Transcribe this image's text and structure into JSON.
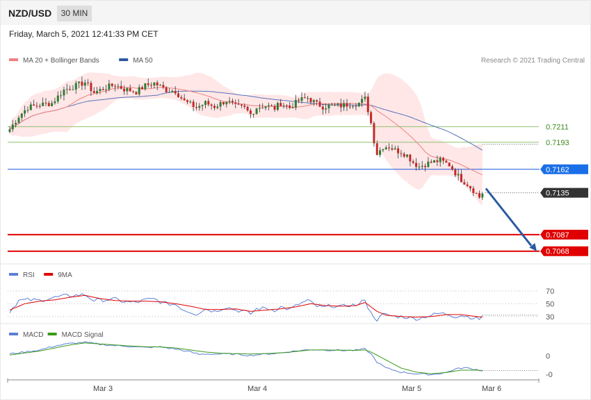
{
  "header": {
    "symbol": "NZD/USD",
    "timeframe": "30 MIN",
    "datetime": "Friday, March 5, 2021 12:41:33 PM CET"
  },
  "legend": {
    "main": [
      {
        "label": "MA 20 + Bollinger Bands",
        "color": "#f08080"
      },
      {
        "label": "MA 50",
        "color": "#2c5aa0"
      }
    ],
    "rsi": [
      {
        "label": "RSI",
        "color": "#5b7fd4"
      },
      {
        "label": "9MA",
        "color": "#e00000"
      }
    ],
    "macd": [
      {
        "label": "MACD",
        "color": "#5b7fd4"
      },
      {
        "label": "MACD Signal",
        "color": "#3a9a1a"
      }
    ]
  },
  "credit": "Research © 2021 Trading Central",
  "colors": {
    "bullish": "#2e7d32",
    "bearish": "#c62828",
    "band_fill": "#ffe3e3",
    "ma20": "#f08080",
    "ma50": "#5572b8",
    "arrow": "#2c5aa0"
  },
  "chart_data": [
    {
      "type": "candlestick",
      "ylim": [
        0.7055,
        0.7283
      ],
      "xlim": [
        0,
        160
      ],
      "price_levels": [
        {
          "label": "0.7211",
          "value": 0.7211,
          "type": "resistance",
          "color": "#8dc06b",
          "tag_color": "#ffffff",
          "text_color": "#3a8a1a"
        },
        {
          "label": "0.7193",
          "value": 0.7193,
          "type": "resistance",
          "color": "#8dc06b",
          "tag_color": "#ffffff",
          "text_color": "#3a8a1a"
        },
        {
          "label": "0.7162",
          "value": 0.7162,
          "type": "pivot",
          "color": "#1a56db",
          "tag_color": "#1a6fe8",
          "text_color": "#ffffff"
        },
        {
          "label": "0.7135",
          "value": 0.7135,
          "type": "last",
          "color": "#333333",
          "tag_color": "#333333",
          "text_color": "#ffffff"
        },
        {
          "label": "0.7087",
          "value": 0.7087,
          "type": "support",
          "color": "#e00000",
          "tag_color": "#e00000",
          "text_color": "#ffffff"
        },
        {
          "label": "0.7068",
          "value": 0.7068,
          "type": "support",
          "color": "#e00000",
          "tag_color": "#e00000",
          "text_color": "#ffffff"
        }
      ],
      "anchors": [
        [
          0,
          0.7208
        ],
        [
          3,
          0.7223
        ],
        [
          6,
          0.7233
        ],
        [
          10,
          0.7236
        ],
        [
          14,
          0.7238
        ],
        [
          18,
          0.7253
        ],
        [
          22,
          0.7258
        ],
        [
          25,
          0.7262
        ],
        [
          28,
          0.725
        ],
        [
          32,
          0.7256
        ],
        [
          35,
          0.7259
        ],
        [
          38,
          0.7254
        ],
        [
          42,
          0.7251
        ],
        [
          45,
          0.7258
        ],
        [
          48,
          0.7261
        ],
        [
          50,
          0.7257
        ],
        [
          52,
          0.7253
        ],
        [
          55,
          0.7252
        ],
        [
          58,
          0.724
        ],
        [
          62,
          0.7233
        ],
        [
          65,
          0.7238
        ],
        [
          68,
          0.7234
        ],
        [
          72,
          0.7241
        ],
        [
          75,
          0.7234
        ],
        [
          78,
          0.7232
        ],
        [
          80,
          0.7225
        ],
        [
          82,
          0.7233
        ],
        [
          85,
          0.7235
        ],
        [
          88,
          0.7232
        ],
        [
          90,
          0.7238
        ],
        [
          93,
          0.7233
        ],
        [
          96,
          0.7241
        ],
        [
          99,
          0.7244
        ],
        [
          102,
          0.7237
        ],
        [
          104,
          0.7234
        ],
        [
          107,
          0.7235
        ],
        [
          110,
          0.7235
        ],
        [
          113,
          0.7237
        ],
        [
          116,
          0.7238
        ],
        [
          118,
          0.7243
        ],
        [
          119,
          0.723
        ],
        [
          120,
          0.7215
        ],
        [
          121,
          0.7195
        ],
        [
          122,
          0.718
        ],
        [
          124,
          0.7188
        ],
        [
          126,
          0.7188
        ],
        [
          128,
          0.7184
        ],
        [
          130,
          0.7182
        ],
        [
          132,
          0.7178
        ],
        [
          134,
          0.717
        ],
        [
          136,
          0.7165
        ],
        [
          138,
          0.7168
        ],
        [
          140,
          0.717
        ],
        [
          143,
          0.7172
        ],
        [
          146,
          0.7167
        ],
        [
          148,
          0.7158
        ],
        [
          150,
          0.715
        ],
        [
          152,
          0.7145
        ],
        [
          154,
          0.7138
        ],
        [
          156,
          0.713
        ],
        [
          157,
          0.7135
        ]
      ],
      "forecast_arrow": {
        "from_value": 0.714,
        "to_value": 0.7068
      }
    },
    {
      "type": "line",
      "name": "RSI",
      "ylim": [
        20,
        85
      ],
      "levels": [
        70,
        50,
        30
      ],
      "series": [
        {
          "name": "RSI",
          "color": "#5b7fd4",
          "anchors": [
            [
              0,
              38
            ],
            [
              3,
              55
            ],
            [
              6,
              56
            ],
            [
              10,
              55
            ],
            [
              14,
              59
            ],
            [
              18,
              62
            ],
            [
              22,
              63
            ],
            [
              25,
              64
            ],
            [
              28,
              55
            ],
            [
              32,
              56
            ],
            [
              35,
              57
            ],
            [
              38,
              53
            ],
            [
              42,
              52
            ],
            [
              45,
              56
            ],
            [
              48,
              57
            ],
            [
              50,
              53
            ],
            [
              52,
              50
            ],
            [
              55,
              49
            ],
            [
              58,
              40
            ],
            [
              62,
              34
            ],
            [
              65,
              42
            ],
            [
              68,
              38
            ],
            [
              72,
              45
            ],
            [
              75,
              40
            ],
            [
              78,
              38
            ],
            [
              80,
              34
            ],
            [
              82,
              42
            ],
            [
              85,
              43
            ],
            [
              88,
              40
            ],
            [
              90,
              45
            ],
            [
              93,
              41
            ],
            [
              96,
              49
            ],
            [
              99,
              55
            ],
            [
              102,
              46
            ],
            [
              104,
              44
            ],
            [
              107,
              47
            ],
            [
              110,
              45
            ],
            [
              113,
              48
            ],
            [
              116,
              48
            ],
            [
              118,
              58
            ],
            [
              119,
              44
            ],
            [
              120,
              35
            ],
            [
              121,
              30
            ],
            [
              122,
              25
            ],
            [
              124,
              33
            ],
            [
              126,
              32
            ],
            [
              128,
              30
            ],
            [
              130,
              30
            ],
            [
              132,
              29
            ],
            [
              134,
              27
            ],
            [
              136,
              27
            ],
            [
              138,
              30
            ],
            [
              140,
              32
            ],
            [
              143,
              35
            ],
            [
              146,
              33
            ],
            [
              148,
              30
            ],
            [
              150,
              32
            ],
            [
              152,
              30
            ],
            [
              154,
              28
            ],
            [
              156,
              26
            ],
            [
              157,
              32
            ]
          ]
        },
        {
          "name": "9MA",
          "color": "#e00000",
          "anchors": [
            [
              0,
              40
            ],
            [
              5,
              50
            ],
            [
              10,
              54
            ],
            [
              15,
              56
            ],
            [
              20,
              60
            ],
            [
              25,
              63
            ],
            [
              30,
              58
            ],
            [
              35,
              55
            ],
            [
              40,
              54
            ],
            [
              45,
              54
            ],
            [
              50,
              53
            ],
            [
              55,
              50
            ],
            [
              60,
              46
            ],
            [
              65,
              41
            ],
            [
              70,
              41
            ],
            [
              75,
              42
            ],
            [
              80,
              38
            ],
            [
              85,
              40
            ],
            [
              90,
              42
            ],
            [
              95,
              45
            ],
            [
              100,
              50
            ],
            [
              105,
              47
            ],
            [
              110,
              46
            ],
            [
              115,
              47
            ],
            [
              118,
              52
            ],
            [
              120,
              45
            ],
            [
              122,
              38
            ],
            [
              125,
              32
            ],
            [
              130,
              30
            ],
            [
              135,
              29
            ],
            [
              140,
              30
            ],
            [
              145,
              33
            ],
            [
              150,
              33
            ],
            [
              155,
              30
            ],
            [
              157,
              29
            ]
          ]
        }
      ]
    },
    {
      "type": "line",
      "name": "MACD",
      "ylim": [
        -0.00115,
        0.00085
      ],
      "ticks": [
        {
          "label": "0",
          "value": 0
        },
        {
          "label": "-0",
          "value": -0.0009
        }
      ],
      "series": [
        {
          "name": "MACD",
          "color": "#5b7fd4",
          "anchors": [
            [
              0,
              0.0001
            ],
            [
              5,
              0.0002
            ],
            [
              10,
              0.0003
            ],
            [
              15,
              0.0005
            ],
            [
              20,
              0.00062
            ],
            [
              25,
              0.00068
            ],
            [
              30,
              0.00058
            ],
            [
              35,
              0.00052
            ],
            [
              40,
              0.00048
            ],
            [
              45,
              0.00042
            ],
            [
              50,
              0.00045
            ],
            [
              55,
              0.00035
            ],
            [
              60,
              0.0002
            ],
            [
              63,
              8e-05
            ],
            [
              65,
              0.0001
            ],
            [
              70,
              0.0001
            ],
            [
              75,
              9e-05
            ],
            [
              80,
              3e-05
            ],
            [
              85,
              0.0001
            ],
            [
              90,
              0.00015
            ],
            [
              95,
              0.00025
            ],
            [
              100,
              0.00032
            ],
            [
              105,
              0.0003
            ],
            [
              110,
              0.00028
            ],
            [
              115,
              0.00028
            ],
            [
              118,
              0.00035
            ],
            [
              120,
              0.0001
            ],
            [
              122,
              -0.0003
            ],
            [
              125,
              -0.0006
            ],
            [
              130,
              -0.0008
            ],
            [
              135,
              -0.00088
            ],
            [
              140,
              -0.00092
            ],
            [
              145,
              -0.00082
            ],
            [
              148,
              -0.00065
            ],
            [
              151,
              -0.00058
            ],
            [
              154,
              -0.00065
            ],
            [
              157,
              -0.00072
            ]
          ]
        },
        {
          "name": "MACD Signal",
          "color": "#3a9a1a",
          "anchors": [
            [
              0,
              5e-05
            ],
            [
              5,
              0.00015
            ],
            [
              10,
              0.00025
            ],
            [
              15,
              0.0004
            ],
            [
              20,
              0.00055
            ],
            [
              25,
              0.00065
            ],
            [
              30,
              0.0006
            ],
            [
              35,
              0.00055
            ],
            [
              40,
              0.0005
            ],
            [
              45,
              0.00046
            ],
            [
              50,
              0.00045
            ],
            [
              55,
              0.0004
            ],
            [
              60,
              0.0003
            ],
            [
              65,
              0.0002
            ],
            [
              70,
              0.00014
            ],
            [
              75,
              0.00012
            ],
            [
              80,
              0.0001
            ],
            [
              85,
              0.00012
            ],
            [
              90,
              0.00016
            ],
            [
              95,
              0.00022
            ],
            [
              100,
              0.0003
            ],
            [
              105,
              0.0003
            ],
            [
              110,
              0.00029
            ],
            [
              115,
              0.00028
            ],
            [
              118,
              0.0003
            ],
            [
              120,
              0.0002
            ],
            [
              125,
              -0.0002
            ],
            [
              130,
              -0.0006
            ],
            [
              135,
              -0.0008
            ],
            [
              140,
              -0.00088
            ],
            [
              145,
              -0.00082
            ],
            [
              150,
              -0.0007
            ],
            [
              155,
              -0.0007
            ],
            [
              157,
              -0.00072
            ]
          ]
        }
      ]
    }
  ],
  "xaxis": {
    "ticks": [
      {
        "label": "Mar 3",
        "x": 24
      },
      {
        "label": "Mar 4",
        "x": 64
      },
      {
        "label": "Mar 5",
        "x": 104
      },
      {
        "label": "Mar 6",
        "x": 125
      }
    ]
  }
}
